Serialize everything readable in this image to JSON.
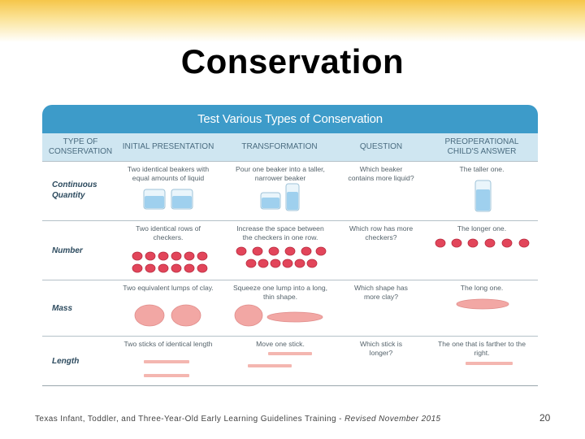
{
  "slide": {
    "title": "Conservation",
    "footer": "Texas Infant, Toddler, and Three-Year-Old Early Learning Guidelines Training - ",
    "footer_revision": "Revised November 2015",
    "page_number": "20"
  },
  "table": {
    "title": "Test Various Types of Conservation",
    "columns": [
      "TYPE OF CONSERVATION",
      "INITIAL PRESENTATION",
      "TRANSFORMATION",
      "QUESTION",
      "PREOPERATIONAL CHILD'S ANSWER"
    ],
    "rows": [
      {
        "type": "Continuous Quantity",
        "initial": "Two identical beakers with equal amounts of liquid",
        "transformation": "Pour one beaker into a taller, narrower beaker",
        "question": "Which beaker contains more liquid?",
        "answer": "The taller one."
      },
      {
        "type": "Number",
        "initial": "Two identical rows of checkers.",
        "transformation": "Increase the space between the checkers in one row.",
        "question": "Which row has more checkers?",
        "answer": "The longer one."
      },
      {
        "type": "Mass",
        "initial": "Two equivalent lumps of clay.",
        "transformation": "Squeeze one lump into a long, thin shape.",
        "question": "Which shape has more clay?",
        "answer": "The long one."
      },
      {
        "type": "Length",
        "initial": "Two sticks of identical length",
        "transformation": "Move one stick.",
        "question": "Which stick is longer?",
        "answer": "The one that is farther to the right."
      }
    ]
  },
  "colors": {
    "header": "#3d9bc9",
    "subheader": "#cfe6f1",
    "checker": "#e2455a",
    "clay": "#f2a7a4",
    "beaker_liquid": "#9fd0ee",
    "stick": "#f4b6b0"
  }
}
